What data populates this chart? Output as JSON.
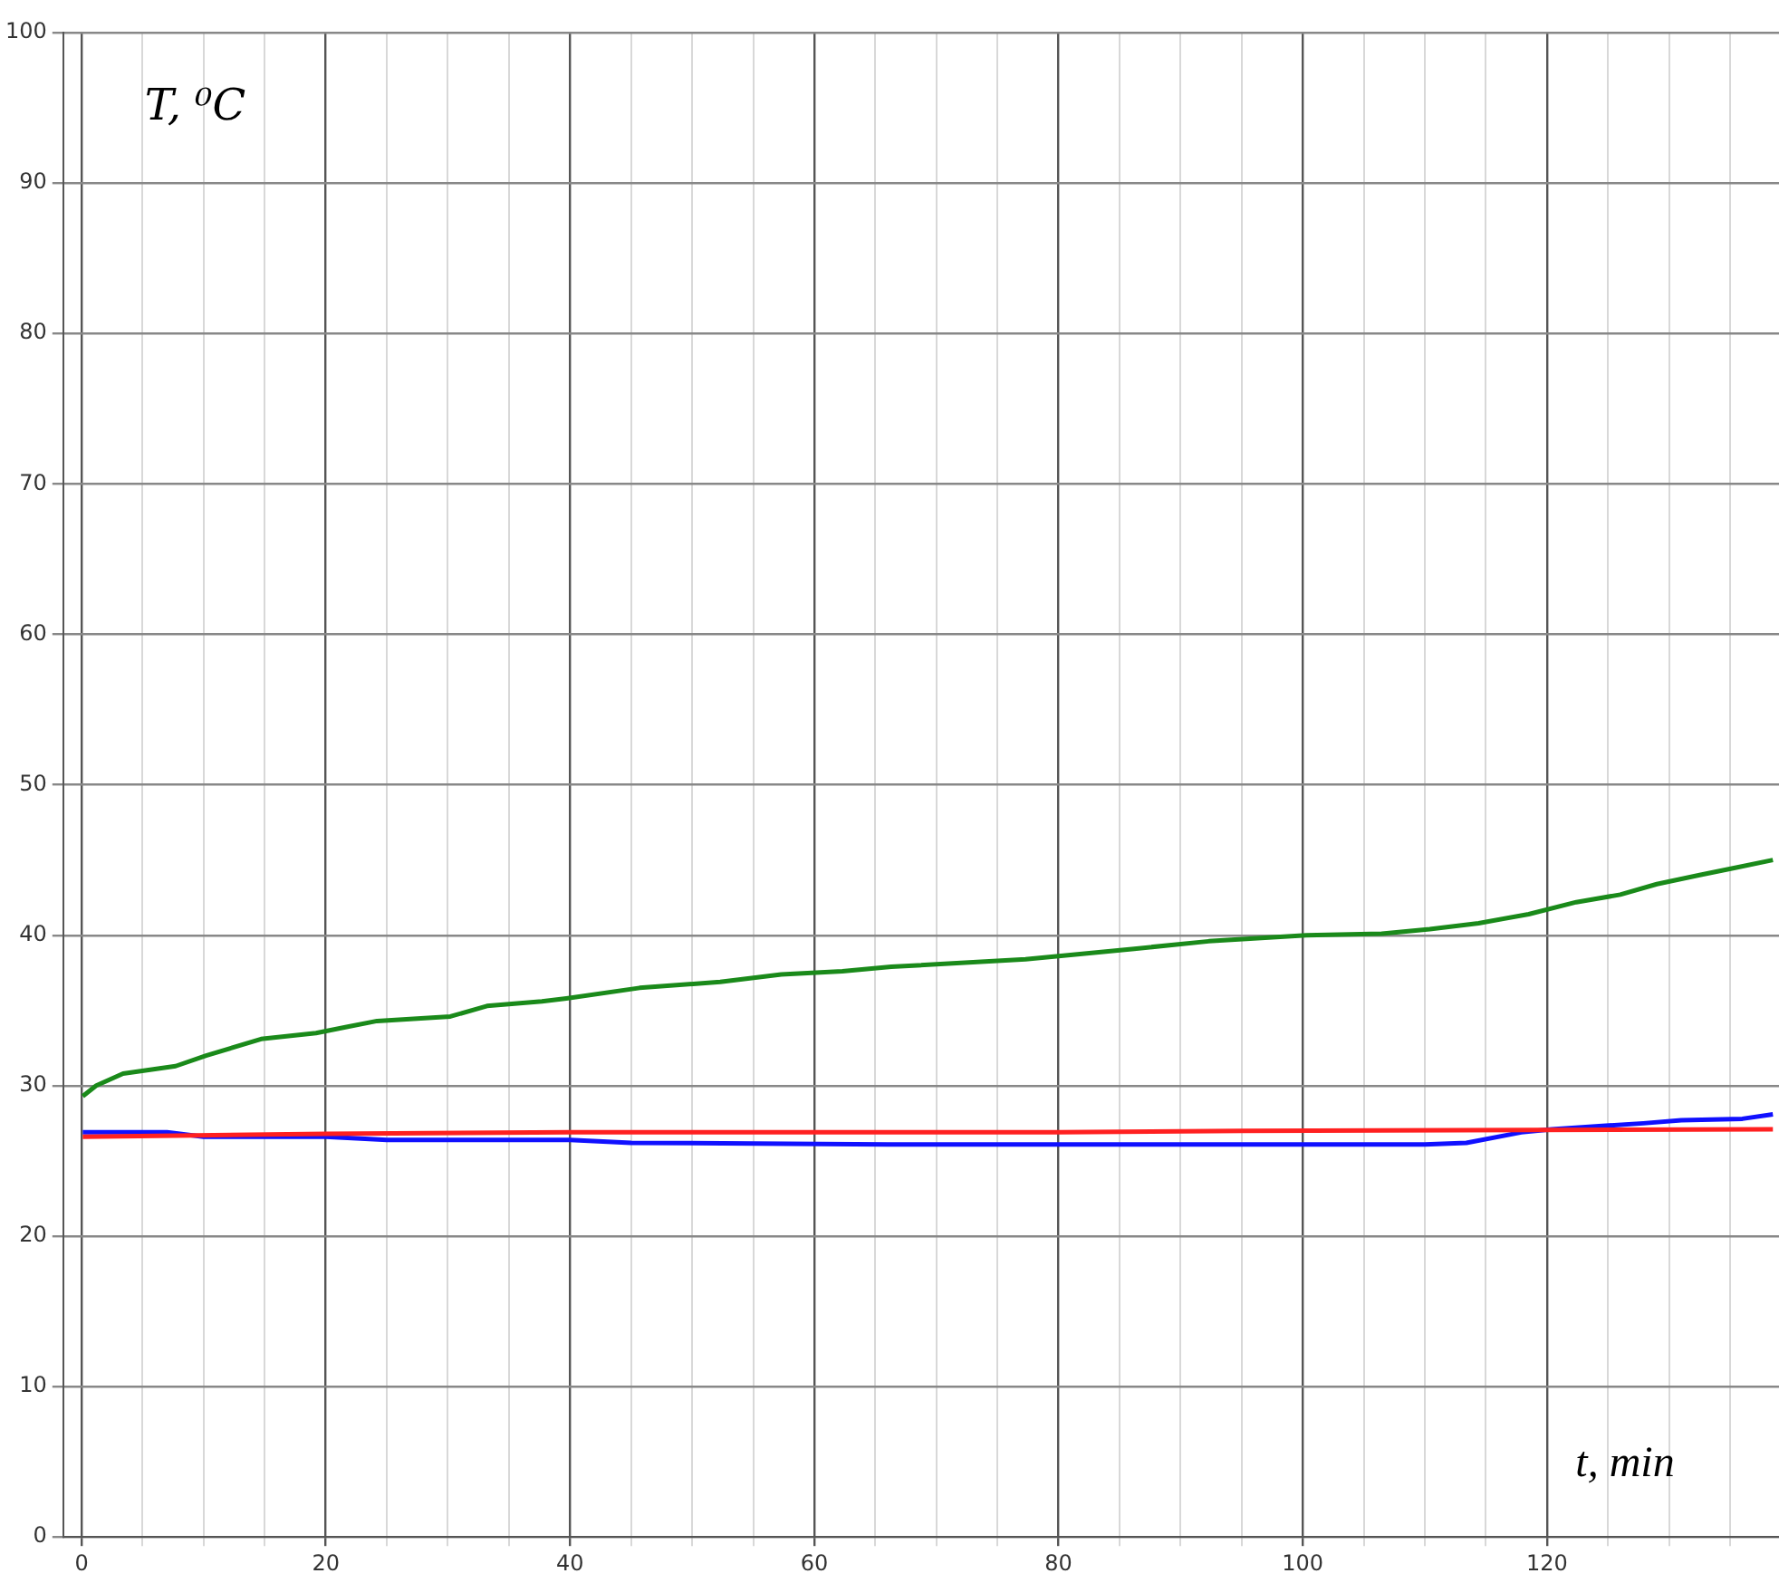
{
  "chart_data": {
    "type": "line",
    "xlabel": "t, min",
    "ylabel": "T, ⁰C",
    "xlim": [
      -1.5,
      139
    ],
    "ylim": [
      0,
      100
    ],
    "xticks": [
      0,
      {
        "value": 5,
        "label": null
      },
      {
        "value": 10,
        "label": null
      },
      {
        "value": 15,
        "label": null
      },
      20,
      {
        "value": 25,
        "label": null
      },
      {
        "value": 30,
        "label": null
      },
      {
        "value": 35,
        "label": null
      },
      40,
      {
        "value": 45,
        "label": null
      },
      {
        "value": 50,
        "label": null
      },
      {
        "value": 55,
        "label": null
      },
      60,
      {
        "value": 65,
        "label": null
      },
      {
        "value": 70,
        "label": null
      },
      {
        "value": 75,
        "label": null
      },
      80,
      {
        "value": 85,
        "label": null
      },
      {
        "value": 90,
        "label": null
      },
      {
        "value": 95,
        "label": null
      },
      100,
      {
        "value": 105,
        "label": null
      },
      {
        "value": 110,
        "label": null
      },
      {
        "value": 115,
        "label": null
      },
      120,
      {
        "value": 125,
        "label": null
      },
      {
        "value": 130,
        "label": null
      },
      {
        "value": 135,
        "label": null
      }
    ],
    "yticks": [
      0,
      10,
      20,
      30,
      40,
      50,
      60,
      70,
      80,
      90,
      100
    ],
    "grid": true,
    "marker": "none",
    "line_style": "solid",
    "series": [
      {
        "color": "#1a8a1a",
        "x": [
          0.1,
          1.2,
          3.4,
          7.7,
          10.2,
          14.7,
          19.2,
          21.7,
          24.2,
          30.2,
          33.2,
          37.7,
          39.7,
          45.7,
          52.3,
          57.3,
          62.3,
          66.3,
          77.3,
          86.2,
          92.3,
          100.3,
          106.5,
          110.4,
          114.4,
          118.5,
          122.4,
          126,
          129,
          132.5,
          135.5,
          138.5
        ],
        "values": [
          29.3,
          30.0,
          30.8,
          31.3,
          32.0,
          33.1,
          33.5,
          33.9,
          34.3,
          34.6,
          35.3,
          35.6,
          35.8,
          36.5,
          36.9,
          37.4,
          37.6,
          37.9,
          38.4,
          39.1,
          39.6,
          40.0,
          40.1,
          40.4,
          40.8,
          41.4,
          42.2,
          42.7,
          43.4,
          44.0,
          44.5,
          45.0
        ]
      },
      {
        "color": "#ff2020",
        "x": [
          0.1,
          20,
          40,
          80,
          95,
          138.5
        ],
        "values": [
          26.6,
          26.8,
          26.9,
          26.9,
          27.0,
          27.1
        ]
      },
      {
        "color": "#1010ff",
        "x": [
          0.1,
          7,
          10,
          20,
          25,
          40,
          45,
          66,
          110,
          113.4,
          117.9,
          120.4,
          127.9,
          131,
          136,
          138.5
        ],
        "values": [
          26.9,
          26.9,
          26.6,
          26.6,
          26.4,
          26.4,
          26.2,
          26.1,
          26.1,
          26.2,
          26.9,
          27.1,
          27.5,
          27.7,
          27.8,
          28.1
        ]
      }
    ]
  }
}
